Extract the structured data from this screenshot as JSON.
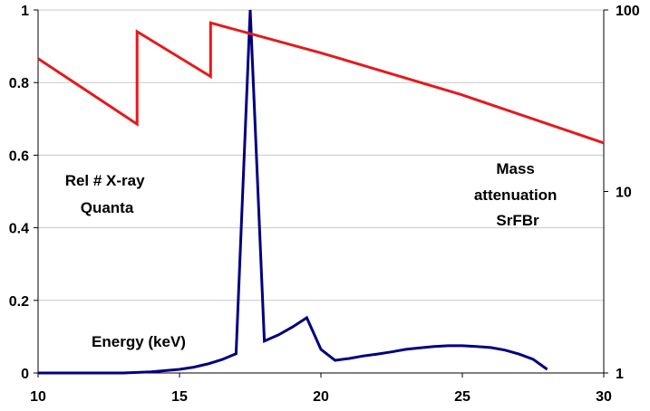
{
  "chart_data": {
    "type": "line",
    "x_axis": {
      "range": [
        10,
        30
      ],
      "ticks": [
        10,
        15,
        20,
        25,
        30
      ]
    },
    "y_axis_left": {
      "range": [
        0,
        1
      ],
      "ticks": [
        "0",
        "0.2",
        "0.4",
        "0.6",
        "0.8",
        "1"
      ]
    },
    "y_axis_right": {
      "scale": "log",
      "range": [
        1,
        100
      ],
      "ticks": [
        "1",
        "10",
        "100"
      ]
    },
    "grid": {
      "horizontal": true,
      "vertical": false
    },
    "annotations": {
      "left_label": [
        "Rel # X-ray",
        "Quanta"
      ],
      "right_label": [
        "Mass",
        "attenuation",
        "SrFBr"
      ],
      "x_label": "Energy (keV)"
    },
    "series": [
      {
        "axis": "left",
        "color": "#000080",
        "x": [
          10,
          11,
          12,
          13,
          14,
          15,
          15.5,
          16,
          16.5,
          17,
          17.5,
          18,
          18.5,
          19,
          19.5,
          20,
          20.5,
          21,
          21.5,
          22,
          22.5,
          23,
          23.5,
          24,
          24.5,
          25,
          25.5,
          26,
          26.5,
          27,
          27.5,
          28
        ],
        "y": [
          0,
          0,
          0,
          0,
          0.003,
          0.01,
          0.016,
          0.025,
          0.037,
          0.053,
          1.0,
          0.088,
          0.105,
          0.127,
          0.152,
          0.065,
          0.035,
          0.04,
          0.047,
          0.052,
          0.058,
          0.065,
          0.069,
          0.073,
          0.075,
          0.075,
          0.073,
          0.07,
          0.063,
          0.052,
          0.038,
          0.01
        ]
      },
      {
        "axis": "right",
        "color": "#e41a1c",
        "x": [
          10,
          13.5,
          13.5,
          16.1,
          16.1,
          20,
          25,
          30
        ],
        "y": [
          54,
          23.5,
          76,
          43,
          85,
          58,
          34,
          18.5
        ]
      }
    ]
  }
}
